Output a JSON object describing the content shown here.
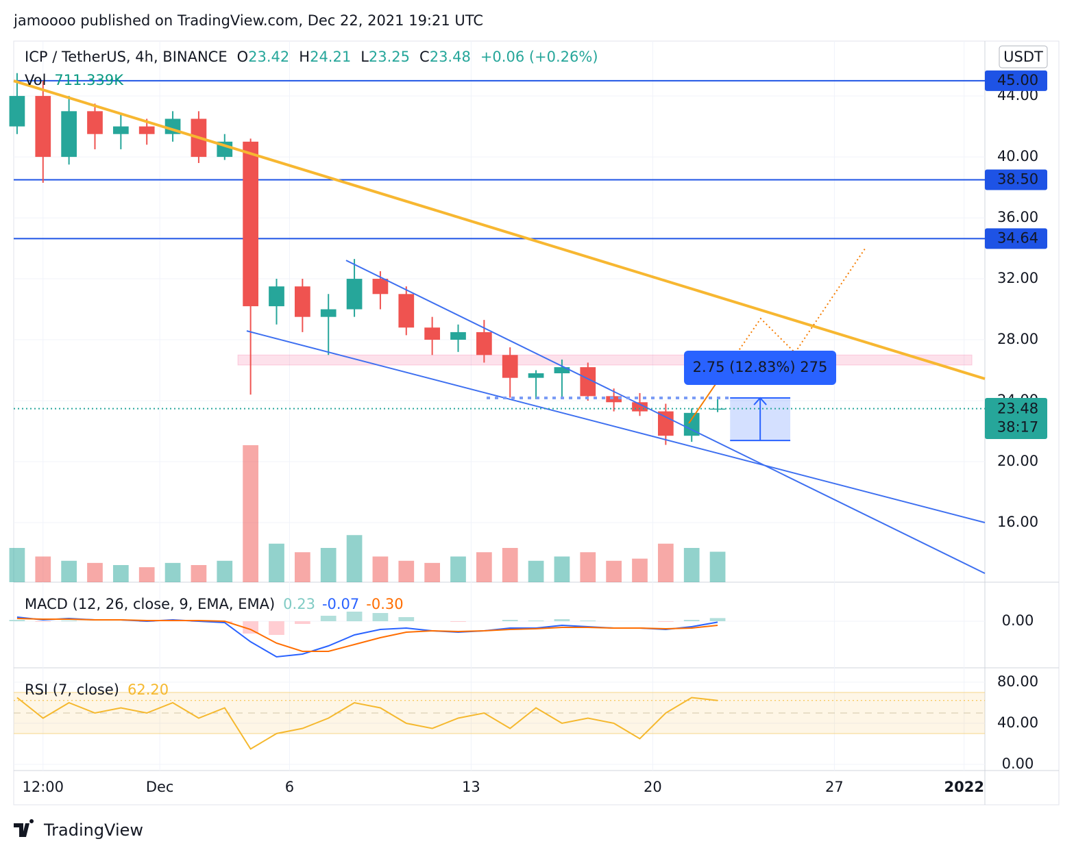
{
  "header": {
    "publisher": "jamoooo published on TradingView.com, Dec 22, 2021 19:21 UTC",
    "symbol": "ICP / TetherUS, 4h, BINANCE",
    "ohlc_letters": [
      "O",
      "H",
      "L",
      "C"
    ],
    "change": "+0.06 (+0.26%)",
    "currency": "USDT",
    "countdown": "38:17",
    "brand": "TradingView"
  },
  "chart_data": {
    "type": "candlestick",
    "x": [
      -5.5,
      -4.5,
      -3.5,
      -2.5,
      -1.5,
      -0.5,
      0.5,
      1.5,
      2.5,
      3.5,
      4.5,
      5.5,
      6.5,
      7.5,
      8.5,
      9.5,
      10.5,
      11.5,
      12.5,
      13.5,
      14.5,
      15.5,
      16.5,
      17.5,
      18.5,
      19.5,
      20.5,
      21.5
    ],
    "open": [
      42,
      44,
      40,
      43,
      41.5,
      42,
      41.5,
      42.5,
      40,
      41,
      30.2,
      31.5,
      29.5,
      30,
      32,
      31,
      28.8,
      28,
      28.5,
      27,
      25.5,
      25.8,
      26.2,
      24.3,
      23.9,
      23.3,
      21.7,
      23.42
    ],
    "high": [
      45.5,
      45,
      44,
      43.5,
      42.8,
      42.5,
      43,
      43,
      41.5,
      41.2,
      32,
      32,
      31,
      33.3,
      32.5,
      31.5,
      29.5,
      29,
      29.3,
      27.5,
      26,
      26.7,
      26.5,
      24.8,
      24.5,
      23.8,
      23.5,
      24.21
    ],
    "low": [
      41.5,
      38.3,
      39.5,
      40.5,
      40.5,
      40.8,
      41,
      39.6,
      39.8,
      24.4,
      29,
      28.5,
      27,
      29.5,
      30,
      28.3,
      27,
      27.2,
      26.5,
      24.2,
      24.1,
      24.1,
      24,
      23.3,
      23,
      21.1,
      21.3,
      23.25
    ],
    "close": [
      44,
      40,
      43,
      41.5,
      42,
      41.5,
      42.5,
      40,
      41,
      30.2,
      31.5,
      29.5,
      30,
      32,
      31,
      28.8,
      28,
      28.5,
      27,
      25.5,
      25.8,
      26.2,
      24.3,
      23.9,
      23.3,
      21.7,
      23.2,
      23.48
    ],
    "up_color": "#26a69a",
    "down_color": "#ef5350",
    "xlim": [
      -5.63,
      31.8
    ],
    "xticks": [
      {
        "value": -4.5,
        "label": "12:00"
      },
      {
        "value": 0,
        "label": "Dec"
      },
      {
        "value": 5,
        "label": "6"
      },
      {
        "value": 12,
        "label": "13"
      },
      {
        "value": 19,
        "label": "20"
      },
      {
        "value": 26,
        "label": "27"
      },
      {
        "value": 31,
        "label": "2022"
      }
    ],
    "ylim": [
      12.09,
      47.6
    ],
    "yticks": [
      {
        "value": 16,
        "label": "16.00"
      },
      {
        "value": 20,
        "label": "20.00"
      },
      {
        "value": 24,
        "label": "24.00"
      },
      {
        "value": 28,
        "label": "28.00"
      },
      {
        "value": 32,
        "label": "32.00"
      },
      {
        "value": 36,
        "label": "36.00"
      },
      {
        "value": 40,
        "label": "40.00"
      },
      {
        "value": 44,
        "label": "44.00"
      }
    ],
    "grid": true,
    "levels": [
      {
        "value": 45,
        "label": "45.00"
      },
      {
        "value": 38.5,
        "label": "38.50"
      },
      {
        "value": 34.64,
        "label": "34.64"
      }
    ],
    "level_color": "#1e53e5",
    "volume": {
      "name": "Vol",
      "last_label": "711.339K",
      "values": [
        800,
        600,
        500,
        450,
        400,
        350,
        450,
        400,
        500,
        3200,
        900,
        700,
        800,
        1100,
        600,
        500,
        450,
        600,
        700,
        800,
        500,
        600,
        700,
        500,
        550,
        900,
        800,
        711.339
      ]
    },
    "trendlines": [
      {
        "color": "#f7b731",
        "points": [
          [
            -5.63,
            44.99
          ],
          [
            31.8,
            25.44
          ]
        ]
      },
      {
        "color": "#3d6ff0",
        "points": [
          [
            7.18,
            33.21
          ],
          [
            31.8,
            12.67
          ]
        ]
      },
      {
        "color": "#3d6ff0",
        "points": [
          [
            3.35,
            28.58
          ],
          [
            31.8,
            16.0
          ]
        ]
      }
    ],
    "zone": {
      "x": [
        3.01,
        31.3
      ],
      "y": [
        26.34,
        27.0
      ]
    },
    "projection": {
      "x": [
        20.39,
        21.71,
        23.16,
        24.48,
        27.18
      ],
      "y": [
        22.52,
        25.8,
        29.39,
        27.15,
        33.98
      ]
    },
    "measure": {
      "x": [
        21.98,
        24.3
      ],
      "y": [
        21.39,
        24.18
      ],
      "label": "2.75 (12.83%) 275"
    },
    "macd": {
      "title": "MACD (12, 26, close, 9, EMA, EMA)",
      "legend_labels": [
        "0.23",
        "-0.07",
        "-0.30"
      ],
      "ylim": [
        -3.4,
        2.85
      ],
      "yticks": [
        {
          "value": 0,
          "label": "0.00"
        }
      ],
      "histogram": [
        0.1,
        -0.05,
        0.05,
        0,
        0,
        -0.05,
        0.05,
        -0.05,
        -0.1,
        -0.9,
        -1.0,
        -0.2,
        0.4,
        0.7,
        0.6,
        0.3,
        0,
        -0.05,
        0,
        0.1,
        0.05,
        0.15,
        0.05,
        0,
        0,
        -0.05,
        0.1,
        0.23
      ],
      "macd": [
        0.3,
        0.1,
        0.2,
        0.1,
        0.1,
        0.0,
        0.1,
        0.0,
        -0.1,
        -1.5,
        -2.6,
        -2.4,
        -1.8,
        -1.0,
        -0.6,
        -0.5,
        -0.7,
        -0.8,
        -0.7,
        -0.5,
        -0.5,
        -0.3,
        -0.4,
        -0.5,
        -0.5,
        -0.6,
        -0.4,
        -0.07
      ],
      "signal": [
        0.2,
        0.15,
        0.15,
        0.1,
        0.1,
        0.05,
        0.05,
        0.05,
        0.0,
        -0.6,
        -1.6,
        -2.2,
        -2.2,
        -1.7,
        -1.2,
        -0.8,
        -0.7,
        -0.75,
        -0.7,
        -0.6,
        -0.55,
        -0.45,
        -0.45,
        -0.5,
        -0.5,
        -0.55,
        -0.5,
        -0.3
      ]
    },
    "rsi": {
      "title": "RSI (7, close)",
      "last_label": "62.20",
      "ylim": [
        -6,
        94
      ],
      "yticks": [
        {
          "value": 0,
          "label": "0.00"
        },
        {
          "value": 40,
          "label": "40.00"
        },
        {
          "value": 80,
          "label": "80.00"
        }
      ],
      "band": [
        30,
        70
      ],
      "midline": 50,
      "values": [
        65,
        45,
        60,
        50,
        55,
        50,
        60,
        45,
        55,
        15,
        30,
        35,
        45,
        60,
        55,
        40,
        35,
        45,
        50,
        35,
        55,
        40,
        45,
        40,
        25,
        50,
        65,
        62.2
      ]
    }
  }
}
